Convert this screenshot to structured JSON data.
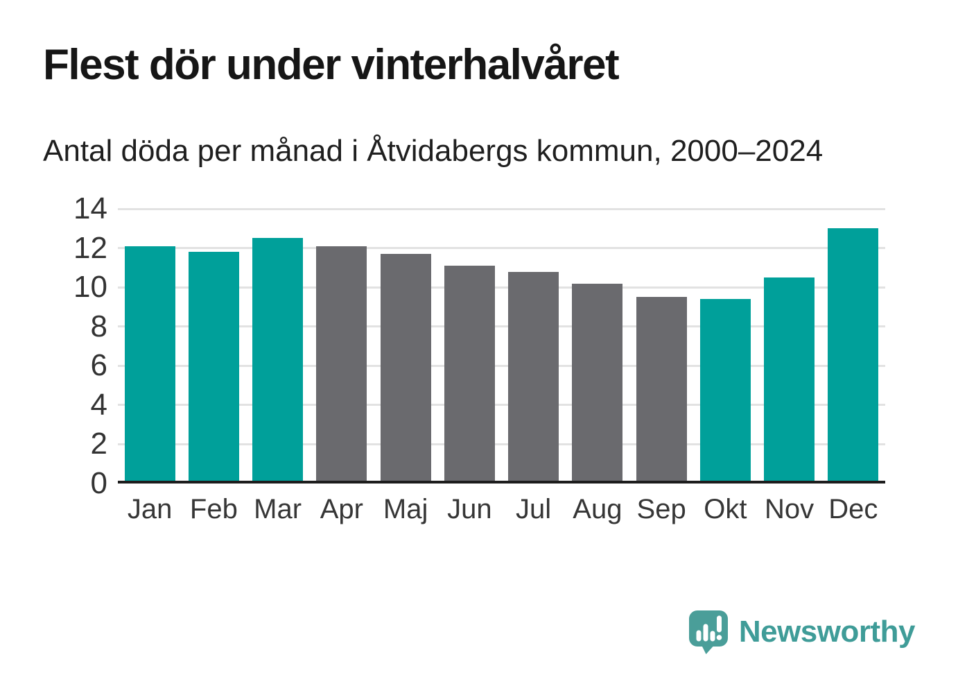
{
  "header": {
    "title": "Flest dör under vinterhalvåret",
    "subtitle": "Antal döda per månad i Åtvidabergs kommun, 2000–2024"
  },
  "chart_data": {
    "type": "bar",
    "title": "Flest dör under vinterhalvåret",
    "subtitle": "Antal döda per månad i Åtvidabergs kommun, 2000–2024",
    "categories": [
      "Jan",
      "Feb",
      "Mar",
      "Apr",
      "Maj",
      "Jun",
      "Jul",
      "Aug",
      "Sep",
      "Okt",
      "Nov",
      "Dec"
    ],
    "values": [
      12.1,
      11.8,
      12.5,
      12.1,
      11.7,
      11.1,
      10.8,
      10.2,
      9.5,
      9.4,
      10.5,
      13.0
    ],
    "bar_colors": [
      "#00a09a",
      "#00a09a",
      "#00a09a",
      "#6a6a6e",
      "#6a6a6e",
      "#6a6a6e",
      "#6a6a6e",
      "#6a6a6e",
      "#6a6a6e",
      "#00a09a",
      "#00a09a",
      "#00a09a"
    ],
    "highlighted_winter_months": [
      "Jan",
      "Feb",
      "Mar",
      "Okt",
      "Nov",
      "Dec"
    ],
    "xlabel": "",
    "ylabel": "",
    "ylim": [
      0,
      14
    ],
    "yticks": [
      0,
      2,
      4,
      6,
      8,
      10,
      12,
      14
    ],
    "grid": true,
    "legend": false,
    "colors": {
      "winter_bar": "#00a09a",
      "summer_bar": "#6a6a6e",
      "gridline": "#e2e2e2",
      "axis_line": "#1d1d1d",
      "tick_text": "#333333"
    }
  },
  "footer": {
    "brand": "Newsworthy",
    "brand_color": "#3f9c98",
    "logo": {
      "icon": "newsworthy-speech-bubble-barchart-icon",
      "bubble_color": "#4a9e99",
      "tail_shadow_color": "#3e8e89",
      "glyph_color": "#ffffff"
    }
  }
}
